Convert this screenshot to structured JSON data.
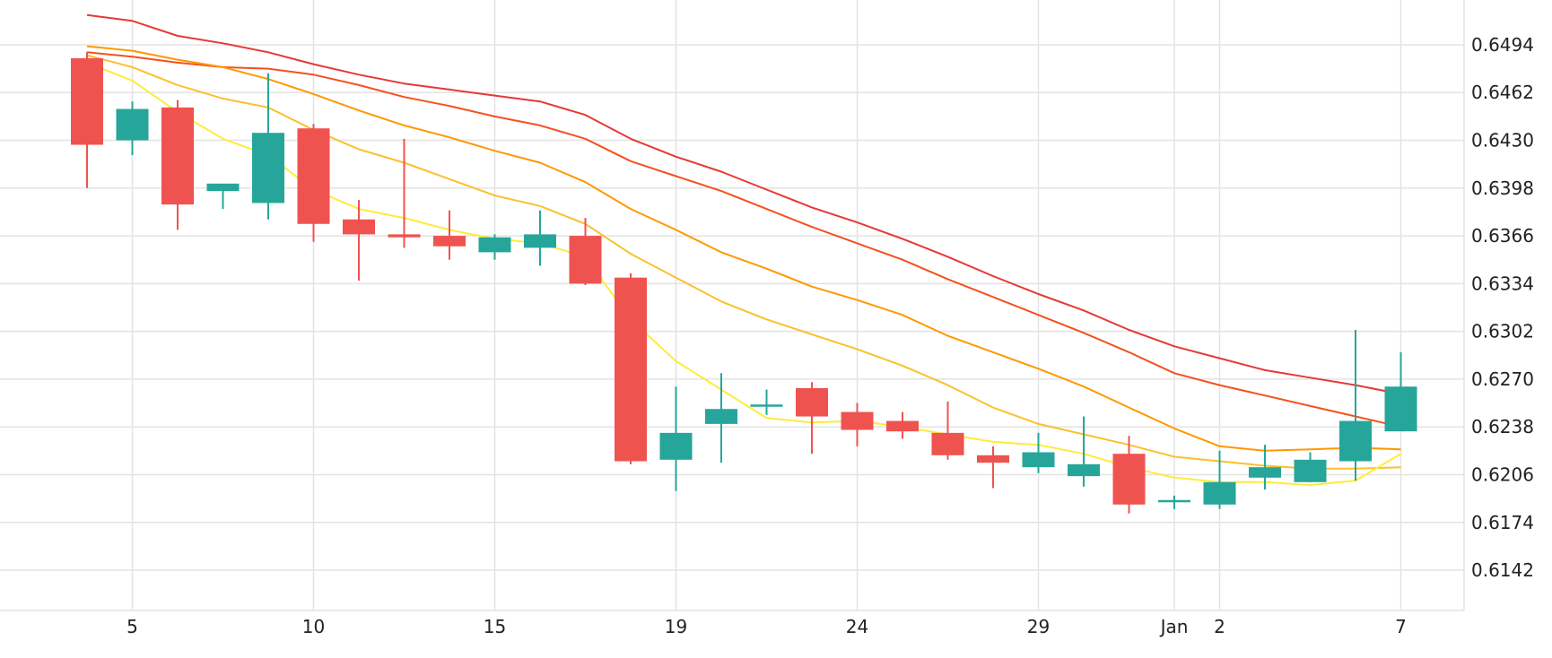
{
  "chart_data": {
    "type": "candlestick",
    "title": "",
    "xlabel": "",
    "ylabel": "",
    "ylim": [
      0.6115,
      0.6524
    ],
    "x_ticks": [
      {
        "index": 1,
        "label": "5"
      },
      {
        "index": 5,
        "label": "10"
      },
      {
        "index": 9,
        "label": "15"
      },
      {
        "index": 13,
        "label": "19"
      },
      {
        "index": 17,
        "label": "24"
      },
      {
        "index": 21,
        "label": "29"
      },
      {
        "index": 24,
        "label": "Jan"
      },
      {
        "index": 25,
        "label": "2"
      },
      {
        "index": 29,
        "label": "7"
      }
    ],
    "y_ticks": [
      "0.6142",
      "0.6174",
      "0.6206",
      "0.6238",
      "0.6270",
      "0.6302",
      "0.6334",
      "0.6366",
      "0.6398",
      "0.6430",
      "0.6462",
      "0.6494"
    ],
    "grid": true,
    "colors": {
      "up": "#26a69a",
      "down": "#ef5350",
      "grid": "#e3e3e3",
      "axis_text": "#222222"
    },
    "candles": [
      {
        "o": 0.6485,
        "h": 0.6489,
        "l": 0.6398,
        "c": 0.6427
      },
      {
        "o": 0.643,
        "h": 0.6456,
        "l": 0.642,
        "c": 0.6451
      },
      {
        "o": 0.6452,
        "h": 0.6457,
        "l": 0.637,
        "c": 0.6387
      },
      {
        "o": 0.6396,
        "h": 0.64,
        "l": 0.6384,
        "c": 0.6401
      },
      {
        "o": 0.6388,
        "h": 0.6475,
        "l": 0.6377,
        "c": 0.6435
      },
      {
        "o": 0.6438,
        "h": 0.6441,
        "l": 0.6362,
        "c": 0.6374
      },
      {
        "o": 0.6377,
        "h": 0.639,
        "l": 0.6336,
        "c": 0.6367
      },
      {
        "o": 0.6367,
        "h": 0.6431,
        "l": 0.6358,
        "c": 0.6365
      },
      {
        "o": 0.6366,
        "h": 0.6383,
        "l": 0.635,
        "c": 0.6359
      },
      {
        "o": 0.6355,
        "h": 0.6367,
        "l": 0.635,
        "c": 0.6365
      },
      {
        "o": 0.6358,
        "h": 0.6383,
        "l": 0.6346,
        "c": 0.6367
      },
      {
        "o": 0.6366,
        "h": 0.6378,
        "l": 0.6333,
        "c": 0.6334
      },
      {
        "o": 0.6338,
        "h": 0.6341,
        "l": 0.6213,
        "c": 0.6215
      },
      {
        "o": 0.6216,
        "h": 0.6265,
        "l": 0.6195,
        "c": 0.6234
      },
      {
        "o": 0.624,
        "h": 0.6274,
        "l": 0.6214,
        "c": 0.625
      },
      {
        "o": 0.6252,
        "h": 0.6263,
        "l": 0.6246,
        "c": 0.6253
      },
      {
        "o": 0.6264,
        "h": 0.6268,
        "l": 0.622,
        "c": 0.6245
      },
      {
        "o": 0.6248,
        "h": 0.6254,
        "l": 0.6225,
        "c": 0.6236
      },
      {
        "o": 0.6242,
        "h": 0.6248,
        "l": 0.623,
        "c": 0.6235
      },
      {
        "o": 0.6234,
        "h": 0.6255,
        "l": 0.6216,
        "c": 0.6219
      },
      {
        "o": 0.6219,
        "h": 0.6225,
        "l": 0.6197,
        "c": 0.6214
      },
      {
        "o": 0.6211,
        "h": 0.6234,
        "l": 0.6207,
        "c": 0.6221
      },
      {
        "o": 0.6205,
        "h": 0.6245,
        "l": 0.6198,
        "c": 0.6213
      },
      {
        "o": 0.622,
        "h": 0.6232,
        "l": 0.618,
        "c": 0.6186
      },
      {
        "o": 0.6188,
        "h": 0.6192,
        "l": 0.6183,
        "c": 0.6189
      },
      {
        "o": 0.6186,
        "h": 0.6222,
        "l": 0.6183,
        "c": 0.6201
      },
      {
        "o": 0.6204,
        "h": 0.6226,
        "l": 0.6196,
        "c": 0.6211
      },
      {
        "o": 0.6201,
        "h": 0.6221,
        "l": 0.6201,
        "c": 0.6216
      },
      {
        "o": 0.6215,
        "h": 0.6303,
        "l": 0.6202,
        "c": 0.6242
      },
      {
        "o": 0.6235,
        "h": 0.6288,
        "l": 0.6236,
        "c": 0.6265
      }
    ],
    "series": [
      {
        "color": "#ffeb3b",
        "values": [
          0.6482,
          0.647,
          0.6449,
          0.6431,
          0.642,
          0.6397,
          0.6384,
          0.6378,
          0.637,
          0.6364,
          0.6361,
          0.6352,
          0.631,
          0.6282,
          0.6263,
          0.6244,
          0.6241,
          0.6242,
          0.6238,
          0.6233,
          0.6228,
          0.6226,
          0.622,
          0.6211,
          0.6204,
          0.6201,
          0.6201,
          0.6199,
          0.6202,
          0.622
        ]
      },
      {
        "color": "#fbc02d",
        "values": [
          0.6487,
          0.6479,
          0.6467,
          0.6458,
          0.6452,
          0.6437,
          0.6424,
          0.6415,
          0.6404,
          0.6393,
          0.6386,
          0.6374,
          0.6354,
          0.6338,
          0.6322,
          0.631,
          0.63,
          0.629,
          0.6279,
          0.6266,
          0.6251,
          0.624,
          0.6233,
          0.6226,
          0.6218,
          0.6215,
          0.6212,
          0.621,
          0.621,
          0.6211
        ]
      },
      {
        "color": "#ff9800",
        "values": [
          0.6493,
          0.649,
          0.6484,
          0.6479,
          0.6471,
          0.6461,
          0.645,
          0.644,
          0.6432,
          0.6423,
          0.6415,
          0.6402,
          0.6384,
          0.637,
          0.6355,
          0.6344,
          0.6332,
          0.6323,
          0.6313,
          0.6299,
          0.6288,
          0.6277,
          0.6265,
          0.6251,
          0.6237,
          0.6225,
          0.6222,
          0.6223,
          0.6224,
          0.6223
        ]
      },
      {
        "color": "#f4511e",
        "values": [
          0.6489,
          0.6486,
          0.6482,
          0.6479,
          0.6478,
          0.6474,
          0.6467,
          0.6459,
          0.6453,
          0.6446,
          0.644,
          0.6431,
          0.6416,
          0.6406,
          0.6396,
          0.6384,
          0.6372,
          0.6361,
          0.635,
          0.6337,
          0.6325,
          0.6313,
          0.6301,
          0.6288,
          0.6274,
          0.6266,
          0.6259,
          0.6252,
          0.6245,
          0.6238
        ]
      },
      {
        "color": "#e53935",
        "values": [
          0.6514,
          0.651,
          0.65,
          0.6495,
          0.6489,
          0.6481,
          0.6474,
          0.6468,
          0.6464,
          0.646,
          0.6456,
          0.6447,
          0.6431,
          0.6419,
          0.6409,
          0.6397,
          0.6385,
          0.6375,
          0.6364,
          0.6352,
          0.6339,
          0.6327,
          0.6316,
          0.6303,
          0.6292,
          0.6284,
          0.6276,
          0.6271,
          0.6266,
          0.626
        ]
      }
    ]
  }
}
